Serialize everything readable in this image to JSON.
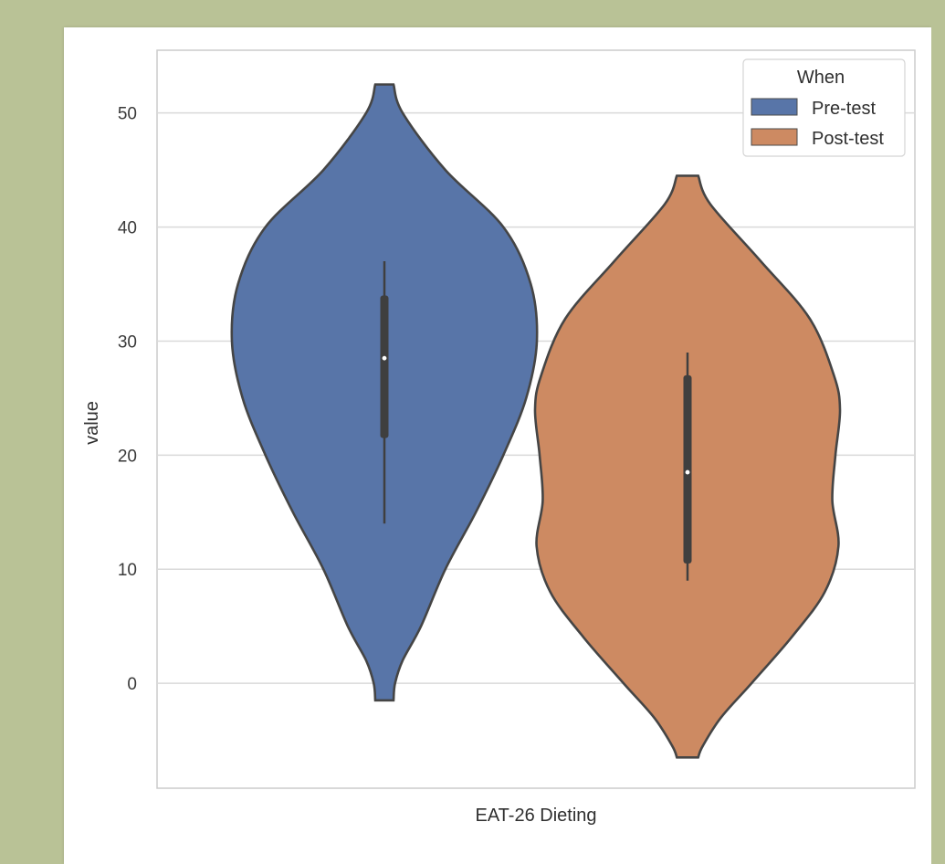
{
  "chart_data": {
    "type": "violin",
    "xlabel": "EAT-26 Dieting",
    "ylabel": "value",
    "ylim": [
      -9.2,
      55.5
    ],
    "yticks": [
      0,
      10,
      20,
      30,
      40,
      50
    ],
    "grid": true,
    "legend": {
      "title": "When",
      "placement": "top-right",
      "entries": [
        "Pre-test",
        "Post-test"
      ]
    },
    "category": "EAT-26 Dieting",
    "series": [
      {
        "name": "Pre-test",
        "color": "#5875a8",
        "median": 28.5,
        "q1": 21.5,
        "q3": 34.0,
        "whisker_low": 14.0,
        "whisker_high": 37.0,
        "extent": [
          -1.5,
          52.5
        ],
        "density_profile": [
          [
            52.5,
            0.06
          ],
          [
            50,
            0.12
          ],
          [
            45,
            0.4
          ],
          [
            40,
            0.78
          ],
          [
            35,
            0.96
          ],
          [
            30,
            1.0
          ],
          [
            25,
            0.93
          ],
          [
            20,
            0.78
          ],
          [
            15,
            0.6
          ],
          [
            10,
            0.4
          ],
          [
            5,
            0.24
          ],
          [
            2,
            0.12
          ],
          [
            0,
            0.07
          ],
          [
            -1.5,
            0.06
          ]
        ]
      },
      {
        "name": "Post-test",
        "color": "#cd8a62",
        "median": 18.5,
        "q1": 10.5,
        "q3": 27.0,
        "whisker_low": 9.0,
        "whisker_high": 29.0,
        "extent": [
          -6.5,
          44.5
        ],
        "density_profile": [
          [
            44.5,
            0.07
          ],
          [
            42,
            0.15
          ],
          [
            37,
            0.48
          ],
          [
            32,
            0.8
          ],
          [
            27,
            0.96
          ],
          [
            24,
            1.0
          ],
          [
            20,
            0.97
          ],
          [
            16,
            0.95
          ],
          [
            12,
            0.99
          ],
          [
            8,
            0.9
          ],
          [
            4,
            0.68
          ],
          [
            0,
            0.42
          ],
          [
            -3,
            0.22
          ],
          [
            -5.5,
            0.1
          ],
          [
            -6.5,
            0.07
          ]
        ]
      }
    ]
  }
}
